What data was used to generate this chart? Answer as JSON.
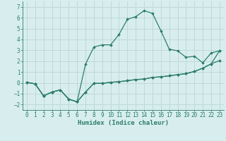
{
  "xlabel": "Humidex (Indice chaleur)",
  "background_color": "#d8eeee",
  "grid_color": "#c0d8d8",
  "line_color": "#2e7d6e",
  "xlim": [
    -0.5,
    23.5
  ],
  "ylim": [
    -2.5,
    7.5
  ],
  "xticks": [
    0,
    1,
    2,
    3,
    4,
    5,
    6,
    7,
    8,
    9,
    10,
    11,
    12,
    13,
    14,
    15,
    16,
    17,
    18,
    19,
    20,
    21,
    22,
    23
  ],
  "yticks": [
    -2,
    -1,
    0,
    1,
    2,
    3,
    4,
    5,
    6,
    7
  ],
  "series1_x": [
    0,
    1,
    2,
    3,
    4,
    5,
    6,
    7,
    8,
    9,
    10,
    11,
    12,
    13,
    14,
    15,
    16,
    17,
    18,
    19,
    20,
    21,
    22,
    23
  ],
  "series1_y": [
    0.05,
    -0.1,
    -1.2,
    -0.85,
    -0.65,
    -1.5,
    -1.75,
    -0.85,
    -0.05,
    -0.05,
    0.05,
    0.1,
    0.2,
    0.3,
    0.35,
    0.5,
    0.55,
    0.65,
    0.75,
    0.85,
    1.05,
    1.35,
    1.75,
    2.05
  ],
  "series2_x": [
    0,
    1,
    2,
    3,
    4,
    5,
    6,
    7,
    8,
    9,
    10,
    11,
    12,
    13,
    14,
    15,
    16,
    17,
    18,
    19,
    20,
    21,
    22,
    23
  ],
  "series2_y": [
    0.05,
    -0.1,
    -1.2,
    -0.85,
    -0.65,
    -1.5,
    -1.75,
    -0.85,
    -0.05,
    -0.05,
    0.05,
    0.1,
    0.2,
    0.3,
    0.35,
    0.5,
    0.55,
    0.65,
    0.75,
    0.85,
    1.05,
    1.35,
    1.75,
    2.95
  ],
  "series3_x": [
    0,
    1,
    2,
    3,
    4,
    5,
    6,
    7,
    8,
    9,
    10,
    11,
    12,
    13,
    14,
    15,
    16,
    17,
    18,
    19,
    20,
    21,
    22,
    23
  ],
  "series3_y": [
    0.05,
    -0.1,
    -1.2,
    -0.85,
    -0.65,
    -1.5,
    -1.75,
    1.7,
    3.3,
    3.5,
    3.5,
    4.45,
    5.85,
    6.1,
    6.65,
    6.4,
    4.8,
    3.1,
    2.95,
    2.35,
    2.45,
    1.85,
    2.75,
    2.95
  ],
  "fontsize_label": 6.5,
  "fontsize_tick": 5.5,
  "marker": "D",
  "markersize": 1.8,
  "linewidth": 0.9
}
